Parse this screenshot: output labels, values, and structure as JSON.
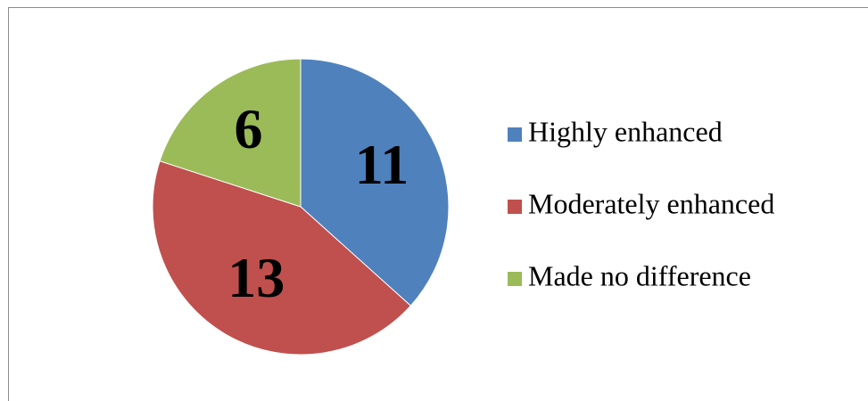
{
  "chart_data": {
    "type": "pie",
    "categories": [
      "Highly enhanced",
      "Moderately enhanced",
      "Made no difference"
    ],
    "values": [
      11,
      13,
      6
    ],
    "colors": [
      "#4f81bd",
      "#c0504d",
      "#9bbb59"
    ],
    "legend": "right"
  }
}
